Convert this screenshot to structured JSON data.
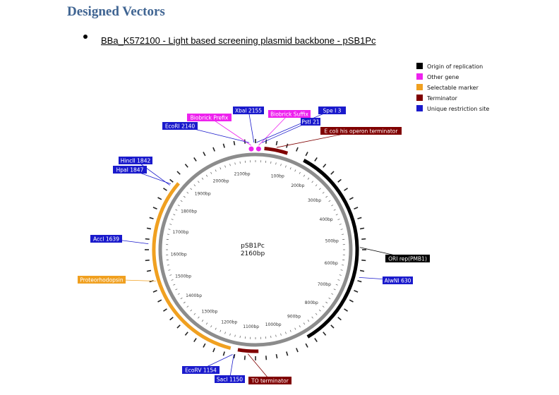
{
  "heading": "Designed Vectors",
  "bullet": "BBa_K572100 - Light based screening plasmid backbone - pSB1Pc",
  "plasmid": {
    "name": "pSB1Pc",
    "size_label": "2160bp",
    "total_bp": 2160
  },
  "legend": [
    {
      "label": "Origin of replication",
      "color": "#000000"
    },
    {
      "label": "Other gene",
      "color": "#ee22ee"
    },
    {
      "label": "Selectable marker",
      "color": "#f0a020"
    },
    {
      "label": "Terminator",
      "color": "#800000"
    },
    {
      "label": "Unique restriction site",
      "color": "#1a1acc"
    }
  ],
  "features": [
    {
      "label": "E coli his operon terminator",
      "type": "terminator",
      "start": 30,
      "end": 110
    },
    {
      "label": "ORI rep(PMB1)",
      "type": "origin",
      "start": 170,
      "end": 895
    },
    {
      "label": "TO terminator",
      "type": "terminator",
      "start": 1070,
      "end": 1140
    },
    {
      "label": "Proteorhodopsin",
      "type": "selectable",
      "start": 1165,
      "end": 1865
    },
    {
      "label": "Biobrick Prefix",
      "type": "other",
      "start": 2141,
      "end": 2150
    },
    {
      "label": "Biobrick Suffix",
      "type": "other",
      "start": 0,
      "end": 21
    }
  ],
  "sites": [
    {
      "label": "Xbal 2155",
      "bp": 2155
    },
    {
      "label": "EcoRI 2140",
      "bp": 2140
    },
    {
      "label": "Spe I 3",
      "bp": 3
    },
    {
      "label": "PstI 21",
      "bp": 21
    },
    {
      "label": "HincII 1842",
      "bp": 1842
    },
    {
      "label": "HpaI 1847",
      "bp": 1847
    },
    {
      "label": "AccI 1639",
      "bp": 1639
    },
    {
      "label": "AlwNI 630",
      "bp": 630
    },
    {
      "label": "EcoRV 1154",
      "bp": 1154
    },
    {
      "label": "SacI 1150",
      "bp": 1150
    }
  ],
  "ticks": [
    {
      "label": "100bp",
      "bp": 100
    },
    {
      "label": "200bp",
      "bp": 200
    },
    {
      "label": "300bp",
      "bp": 300
    },
    {
      "label": "400bp",
      "bp": 400
    },
    {
      "label": "500bp",
      "bp": 500
    },
    {
      "label": "600bp",
      "bp": 600
    },
    {
      "label": "700bp",
      "bp": 700
    },
    {
      "label": "800bp",
      "bp": 800
    },
    {
      "label": "900bp",
      "bp": 900
    },
    {
      "label": "1000bp",
      "bp": 1000
    },
    {
      "label": "1100bp",
      "bp": 1100
    },
    {
      "label": "1200bp",
      "bp": 1200
    },
    {
      "label": "1300bp",
      "bp": 1300
    },
    {
      "label": "1400bp",
      "bp": 1400
    },
    {
      "label": "1500bp",
      "bp": 1500
    },
    {
      "label": "1600bp",
      "bp": 1600
    },
    {
      "label": "1700bp",
      "bp": 1700
    },
    {
      "label": "1800bp",
      "bp": 1800
    },
    {
      "label": "1900bp",
      "bp": 1900
    },
    {
      "label": "2000bp",
      "bp": 2000
    },
    {
      "label": "2100bp",
      "bp": 2100
    }
  ]
}
